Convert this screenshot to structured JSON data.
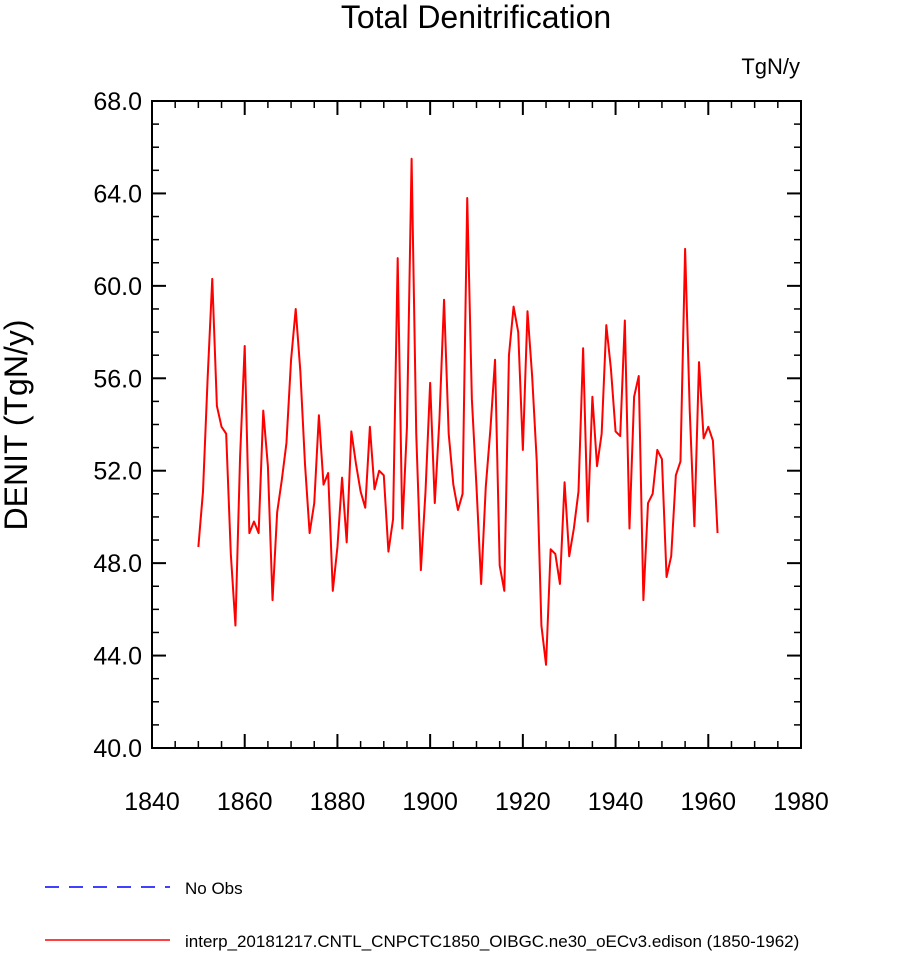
{
  "chart_data": {
    "type": "line",
    "title": "Total Denitrification",
    "units_label": "TgN/y",
    "xlabel": "",
    "ylabel": "DENIT  (TgN/y)",
    "xlim": [
      1840,
      1980
    ],
    "ylim": [
      40.0,
      68.0
    ],
    "x_ticks": [
      1840,
      1860,
      1880,
      1900,
      1920,
      1940,
      1960,
      1980
    ],
    "y_ticks": [
      "40.0",
      "44.0",
      "48.0",
      "52.0",
      "56.0",
      "60.0",
      "64.0",
      "68.0"
    ],
    "series": [
      {
        "name": "interp_20181217.CNTL_CNPCTC1850_OIBGC.ne30_oECv3.edison (1850-1962)",
        "color": "#ff0000",
        "style": "solid",
        "x_start": 1850,
        "values": [
          48.7,
          51.1,
          56.0,
          60.3,
          54.8,
          53.9,
          53.6,
          48.4,
          45.3,
          52.6,
          57.4,
          49.3,
          49.8,
          49.3,
          54.6,
          52.2,
          46.4,
          50.2,
          51.6,
          53.2,
          56.8,
          59.0,
          56.3,
          52.3,
          49.3,
          50.6,
          54.4,
          51.4,
          51.9,
          46.8,
          48.7,
          51.7,
          48.9,
          53.7,
          52.3,
          51.1,
          50.4,
          53.9,
          51.2,
          52.0,
          51.8,
          48.5,
          49.9,
          61.2,
          49.5,
          53.9,
          65.5,
          53.6,
          47.7,
          51.1,
          55.8,
          50.6,
          54.2,
          59.4,
          53.6,
          51.4,
          50.3,
          51.0,
          63.8,
          55.1,
          51.3,
          47.1,
          51.3,
          53.8,
          56.8,
          47.9,
          46.8,
          57.0,
          59.1,
          58.0,
          52.9,
          58.9,
          56.1,
          52.4,
          45.3,
          43.6,
          48.6,
          48.4,
          47.1,
          51.5,
          48.3,
          49.5,
          51.1,
          57.3,
          49.8,
          55.2,
          52.2,
          53.6,
          58.3,
          56.4,
          53.7,
          53.5,
          58.5,
          49.5,
          55.2,
          56.1,
          46.4,
          50.6,
          51.0,
          52.9,
          52.5,
          47.4,
          48.3,
          51.8,
          52.4,
          61.6,
          54.6,
          49.6,
          56.7,
          53.4,
          53.9,
          53.3,
          49.3
        ]
      },
      {
        "name": "No Obs",
        "color": "#0000ff",
        "style": "dashed",
        "values": []
      }
    ],
    "legend_position": "bottom-left"
  }
}
